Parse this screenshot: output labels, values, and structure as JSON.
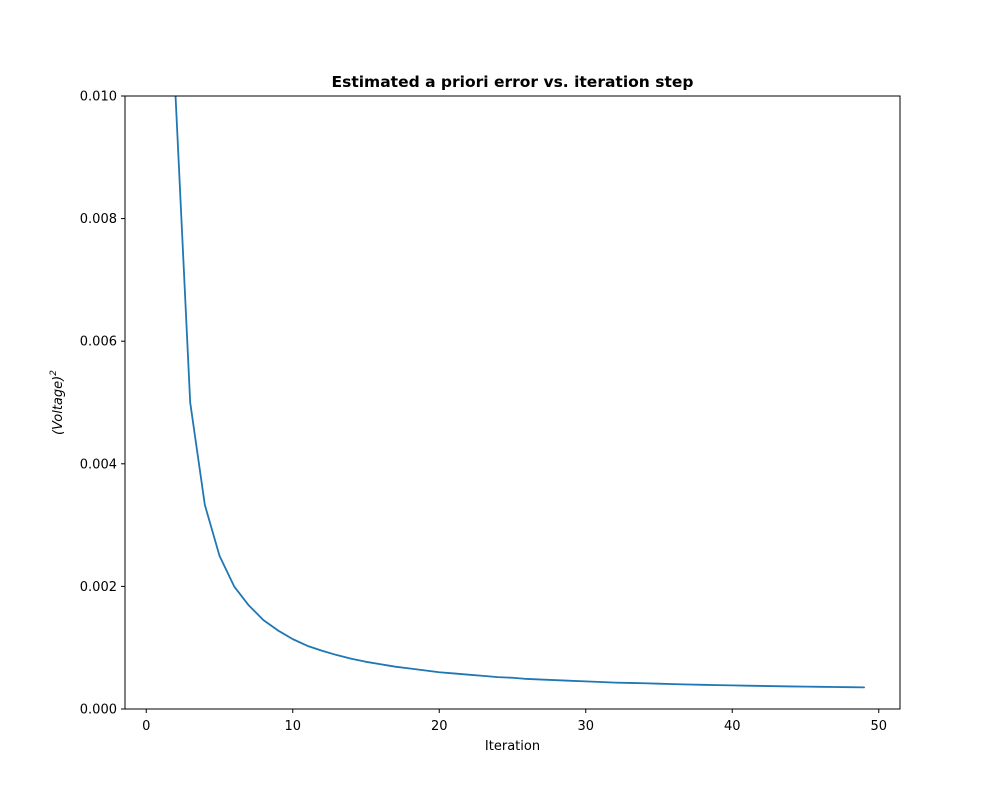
{
  "chart_data": {
    "type": "line",
    "title": "Estimated a priori error vs. iteration step",
    "xlabel": "Iteration",
    "ylabel_base": "(Voltage)",
    "ylabel_exponent": "2",
    "xlim": [
      -1.45,
      51.45
    ],
    "ylim": [
      0,
      0.01
    ],
    "xticks": [
      0,
      10,
      20,
      30,
      40,
      50
    ],
    "xtick_labels": [
      "0",
      "10",
      "20",
      "30",
      "40",
      "50"
    ],
    "yticks": [
      0,
      0.002,
      0.004,
      0.006,
      0.008,
      0.01
    ],
    "ytick_labels": [
      "0.000",
      "0.002",
      "0.004",
      "0.006",
      "0.008",
      "0.010"
    ],
    "grid": false,
    "series": [
      {
        "color": "#1f77b4",
        "x": [
          1,
          2,
          3,
          4,
          5,
          6,
          7,
          8,
          9,
          10,
          11,
          12,
          13,
          14,
          15,
          16,
          17,
          18,
          19,
          20,
          21,
          22,
          23,
          24,
          25,
          26,
          27,
          28,
          29,
          30,
          31,
          32,
          33,
          34,
          35,
          36,
          37,
          38,
          39,
          40,
          41,
          42,
          43,
          44,
          45,
          46,
          47,
          48,
          49
        ],
        "y": [
          0.02,
          0.01,
          0.005,
          0.00333,
          0.0025,
          0.002,
          0.00169,
          0.00145,
          0.00128,
          0.00114,
          0.00103,
          0.00095,
          0.00088,
          0.00082,
          0.00077,
          0.00073,
          0.00069,
          0.00066,
          0.00063,
          0.0006,
          0.00058,
          0.00056,
          0.00054,
          0.00052,
          0.00051,
          0.00049,
          0.00048,
          0.00047,
          0.00046,
          0.00045,
          0.00044,
          0.00043,
          0.000425,
          0.00042,
          0.000413,
          0.000406,
          0.0004,
          0.000395,
          0.00039,
          0.000385,
          0.00038,
          0.000376,
          0.000372,
          0.000368,
          0.000365,
          0.000362,
          0.000359,
          0.000356,
          0.000353
        ]
      }
    ]
  }
}
